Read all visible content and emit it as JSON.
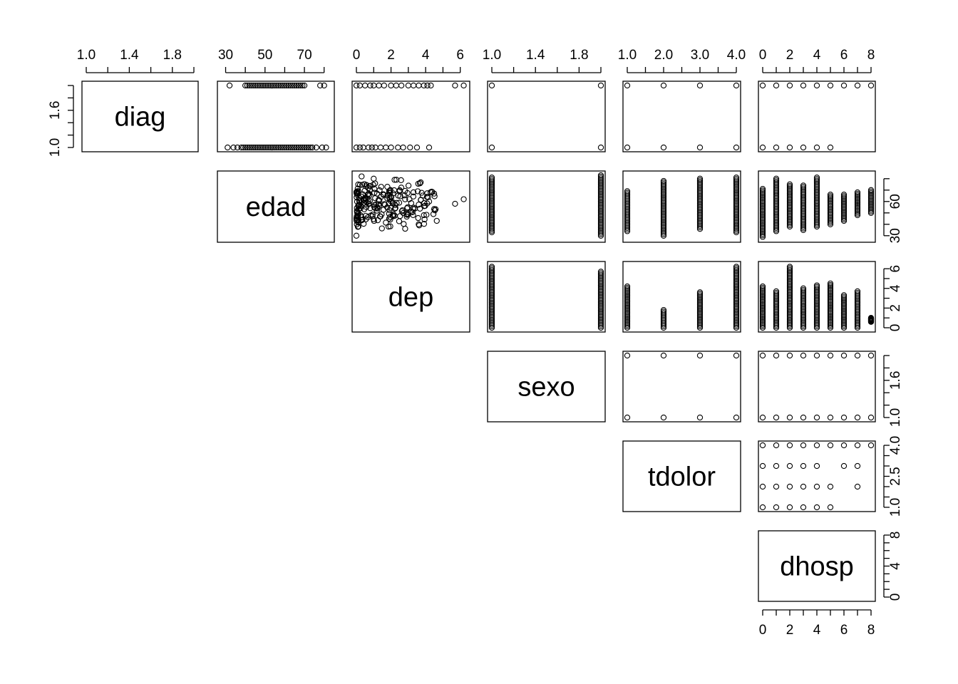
{
  "chart_data": {
    "type": "scatter",
    "kind": "pairs-matrix (upper panels)",
    "variables": [
      {
        "name": "diag",
        "range": [
          1.0,
          2.0
        ],
        "ticks": [
          1.0,
          1.2,
          1.4,
          1.6,
          1.8,
          2.0
        ],
        "tick_labels": [
          {
            "v": 1.0,
            "t": "1.0"
          },
          {
            "v": 1.4,
            "t": "1.4"
          },
          {
            "v": 1.8,
            "t": "1.8"
          }
        ],
        "tick_labels_left": [
          {
            "v": 1.0,
            "t": "1.0"
          },
          {
            "v": 1.6,
            "t": "1.6"
          }
        ]
      },
      {
        "name": "edad",
        "range": [
          28,
          83
        ],
        "ticks": [
          30,
          40,
          50,
          60,
          70,
          80
        ],
        "tick_labels": [
          {
            "v": 30,
            "t": "30"
          },
          {
            "v": 50,
            "t": "50"
          },
          {
            "v": 70,
            "t": "70"
          }
        ],
        "tick_labels_right": [
          {
            "v": 30,
            "t": "30"
          },
          {
            "v": 60,
            "t": "60"
          }
        ]
      },
      {
        "name": "dep",
        "range": [
          0,
          6.3
        ],
        "ticks": [
          0,
          1,
          2,
          3,
          4,
          5,
          6
        ],
        "tick_labels": [
          {
            "v": 0,
            "t": "0"
          },
          {
            "v": 2,
            "t": "2"
          },
          {
            "v": 4,
            "t": "4"
          },
          {
            "v": 6,
            "t": "6"
          }
        ],
        "tick_labels_right": [
          {
            "v": 0,
            "t": "0"
          },
          {
            "v": 2,
            "t": "2"
          },
          {
            "v": 4,
            "t": "4"
          },
          {
            "v": 6,
            "t": "6"
          }
        ]
      },
      {
        "name": "sexo",
        "range": [
          1.0,
          2.0
        ],
        "ticks": [
          1.0,
          1.2,
          1.4,
          1.6,
          1.8,
          2.0
        ],
        "tick_labels": [
          {
            "v": 1.0,
            "t": "1.0"
          },
          {
            "v": 1.4,
            "t": "1.4"
          },
          {
            "v": 1.8,
            "t": "1.8"
          }
        ],
        "tick_labels_right": [
          {
            "v": 1.0,
            "t": "1.0"
          },
          {
            "v": 1.6,
            "t": "1.6"
          }
        ]
      },
      {
        "name": "tdolor",
        "range": [
          1.0,
          4.0
        ],
        "ticks": [
          1.0,
          1.5,
          2.0,
          2.5,
          3.0,
          3.5,
          4.0
        ],
        "tick_labels": [
          {
            "v": 1.0,
            "t": "1.0"
          },
          {
            "v": 2.0,
            "t": "2.0"
          },
          {
            "v": 3.0,
            "t": "3.0"
          },
          {
            "v": 4.0,
            "t": "4.0"
          }
        ],
        "tick_labels_right": [
          {
            "v": 1.0,
            "t": "1.0"
          },
          {
            "v": 2.5,
            "t": "2.5"
          },
          {
            "v": 4.0,
            "t": "4.0"
          }
        ]
      },
      {
        "name": "dhosp",
        "range": [
          0,
          8
        ],
        "ticks": [
          0,
          1,
          2,
          3,
          4,
          5,
          6,
          7,
          8
        ],
        "tick_labels": [
          {
            "v": 0,
            "t": "0"
          },
          {
            "v": 2,
            "t": "2"
          },
          {
            "v": 4,
            "t": "4"
          },
          {
            "v": 6,
            "t": "6"
          },
          {
            "v": 8,
            "t": "8"
          }
        ],
        "tick_labels_right": [
          {
            "v": 0,
            "t": "0"
          },
          {
            "v": 4,
            "t": "4"
          },
          {
            "v": 8,
            "t": "8"
          }
        ]
      }
    ],
    "panels": [
      {
        "x": "edad",
        "y": "diag",
        "points": [
          [
            78,
            2
          ],
          [
            32,
            2
          ],
          [
            80,
            2
          ],
          [
            31,
            1
          ],
          [
            76,
            1
          ],
          [
            79,
            1
          ],
          [
            81,
            1
          ],
          [
            34,
            1
          ],
          [
            36,
            1
          ]
        ],
        "x_range_per_y": [
          {
            "y": 2,
            "x": [
              40,
              70
            ]
          },
          {
            "y": 1,
            "x": [
              38,
              74
            ]
          }
        ]
      },
      {
        "x": "dep",
        "y": "diag",
        "points": [
          [
            0,
            2
          ],
          [
            0.2,
            2
          ],
          [
            0.5,
            2
          ],
          [
            0.8,
            2
          ],
          [
            1.0,
            2
          ],
          [
            1.3,
            2
          ],
          [
            1.6,
            2
          ],
          [
            2.0,
            2
          ],
          [
            2.3,
            2
          ],
          [
            2.6,
            2
          ],
          [
            3.0,
            2
          ],
          [
            3.3,
            2
          ],
          [
            3.6,
            2
          ],
          [
            3.9,
            2
          ],
          [
            4.1,
            2
          ],
          [
            4.3,
            2
          ],
          [
            5.7,
            2
          ],
          [
            6.2,
            2
          ],
          [
            0,
            1
          ],
          [
            0.2,
            1
          ],
          [
            0.4,
            1
          ],
          [
            0.7,
            1
          ],
          [
            0.9,
            1
          ],
          [
            1.1,
            1
          ],
          [
            1.4,
            1
          ],
          [
            1.7,
            1
          ],
          [
            2.0,
            1
          ],
          [
            2.4,
            1
          ],
          [
            2.7,
            1
          ],
          [
            3.1,
            1
          ],
          [
            3.5,
            1
          ],
          [
            4.2,
            1
          ]
        ]
      },
      {
        "x": "sexo",
        "y": "diag",
        "points": [
          [
            1,
            1
          ],
          [
            1,
            2
          ],
          [
            2,
            1
          ],
          [
            2,
            2
          ]
        ]
      },
      {
        "x": "tdolor",
        "y": "diag",
        "points": [
          [
            1,
            1
          ],
          [
            1,
            2
          ],
          [
            2,
            1
          ],
          [
            2,
            2
          ],
          [
            3,
            1
          ],
          [
            3,
            2
          ],
          [
            4,
            1
          ],
          [
            4,
            2
          ]
        ]
      },
      {
        "x": "dhosp",
        "y": "diag",
        "points": [
          [
            0,
            2
          ],
          [
            1,
            2
          ],
          [
            2,
            2
          ],
          [
            3,
            2
          ],
          [
            4,
            2
          ],
          [
            5,
            2
          ],
          [
            6,
            2
          ],
          [
            7,
            2
          ],
          [
            8,
            2
          ],
          [
            0,
            1
          ],
          [
            1,
            1
          ],
          [
            2,
            1
          ],
          [
            3,
            1
          ],
          [
            4,
            1
          ],
          [
            5,
            1
          ]
        ]
      },
      {
        "x": "dep",
        "y": "edad",
        "note": "dense cloud of ~200 points"
      },
      {
        "x": "sexo",
        "y": "edad",
        "x_levels": [
          {
            "x": 1,
            "y": [
              33,
              81
            ]
          },
          {
            "x": 2,
            "y": [
              30,
              83
            ]
          }
        ]
      },
      {
        "x": "tdolor",
        "y": "edad",
        "x_levels": [
          {
            "x": 1,
            "y": [
              34,
              69
            ]
          },
          {
            "x": 2,
            "y": [
              30,
              78
            ]
          },
          {
            "x": 3,
            "y": [
              36,
              80
            ]
          },
          {
            "x": 4,
            "y": [
              33,
              81
            ]
          }
        ]
      },
      {
        "x": "dhosp",
        "y": "edad",
        "x_levels": [
          {
            "x": 0,
            "y": [
              29,
              71
            ]
          },
          {
            "x": 1,
            "y": [
              34,
              80
            ]
          },
          {
            "x": 2,
            "y": [
              38,
              75
            ]
          },
          {
            "x": 3,
            "y": [
              35,
              74
            ]
          },
          {
            "x": 4,
            "y": [
              38,
              81
            ]
          },
          {
            "x": 5,
            "y": [
              40,
              66
            ]
          },
          {
            "x": 6,
            "y": [
              43,
              66
            ]
          },
          {
            "x": 7,
            "y": [
              48,
              68
            ]
          },
          {
            "x": 8,
            "y": [
              50,
              70
            ]
          }
        ]
      },
      {
        "x": "sexo",
        "y": "dep",
        "x_levels": [
          {
            "x": 1,
            "y": [
              0,
              6.2
            ]
          },
          {
            "x": 2,
            "y": [
              0,
              5.7
            ]
          }
        ]
      },
      {
        "x": "tdolor",
        "y": "dep",
        "x_levels": [
          {
            "x": 1,
            "y": [
              0,
              4.2
            ]
          },
          {
            "x": 2,
            "y": [
              0,
              1.8
            ]
          },
          {
            "x": 3,
            "y": [
              0,
              3.6
            ]
          },
          {
            "x": 4,
            "y": [
              0,
              6.2
            ]
          }
        ]
      },
      {
        "x": "dhosp",
        "y": "dep",
        "x_levels": [
          {
            "x": 0,
            "y": [
              0,
              4.2
            ]
          },
          {
            "x": 1,
            "y": [
              0,
              3.7
            ]
          },
          {
            "x": 2,
            "y": [
              0,
              6.2
            ]
          },
          {
            "x": 3,
            "y": [
              0,
              4.0
            ]
          },
          {
            "x": 4,
            "y": [
              0,
              4.3
            ]
          },
          {
            "x": 5,
            "y": [
              0,
              4.5
            ]
          },
          {
            "x": 6,
            "y": [
              0,
              3.3
            ]
          },
          {
            "x": 7,
            "y": [
              0,
              3.7
            ]
          },
          {
            "x": 8,
            "y": [
              0.6,
              1.0
            ]
          }
        ]
      },
      {
        "x": "tdolor",
        "y": "sexo",
        "points": [
          [
            1,
            1
          ],
          [
            1,
            2
          ],
          [
            2,
            1
          ],
          [
            2,
            2
          ],
          [
            3,
            1
          ],
          [
            3,
            2
          ],
          [
            4,
            1
          ],
          [
            4,
            2
          ]
        ]
      },
      {
        "x": "dhosp",
        "y": "sexo",
        "points": [
          [
            0,
            1
          ],
          [
            1,
            1
          ],
          [
            2,
            1
          ],
          [
            3,
            1
          ],
          [
            4,
            1
          ],
          [
            5,
            1
          ],
          [
            6,
            1
          ],
          [
            7,
            1
          ],
          [
            8,
            1
          ],
          [
            0,
            2
          ],
          [
            1,
            2
          ],
          [
            2,
            2
          ],
          [
            3,
            2
          ],
          [
            4,
            2
          ],
          [
            5,
            2
          ],
          [
            6,
            2
          ],
          [
            7,
            2
          ],
          [
            8,
            2
          ]
        ]
      },
      {
        "x": "dhosp",
        "y": "tdolor",
        "points": [
          [
            0,
            4
          ],
          [
            1,
            4
          ],
          [
            2,
            4
          ],
          [
            3,
            4
          ],
          [
            4,
            4
          ],
          [
            5,
            4
          ],
          [
            6,
            4
          ],
          [
            7,
            4
          ],
          [
            8,
            4
          ],
          [
            0,
            3
          ],
          [
            1,
            3
          ],
          [
            2,
            3
          ],
          [
            3,
            3
          ],
          [
            4,
            3
          ],
          [
            6,
            3
          ],
          [
            7,
            3
          ],
          [
            0,
            2
          ],
          [
            1,
            2
          ],
          [
            2,
            2
          ],
          [
            3,
            2
          ],
          [
            4,
            2
          ],
          [
            5,
            2
          ],
          [
            7,
            2
          ],
          [
            0,
            1
          ],
          [
            1,
            1
          ],
          [
            2,
            1
          ],
          [
            3,
            1
          ],
          [
            4,
            1
          ],
          [
            5,
            1
          ]
        ]
      }
    ]
  }
}
